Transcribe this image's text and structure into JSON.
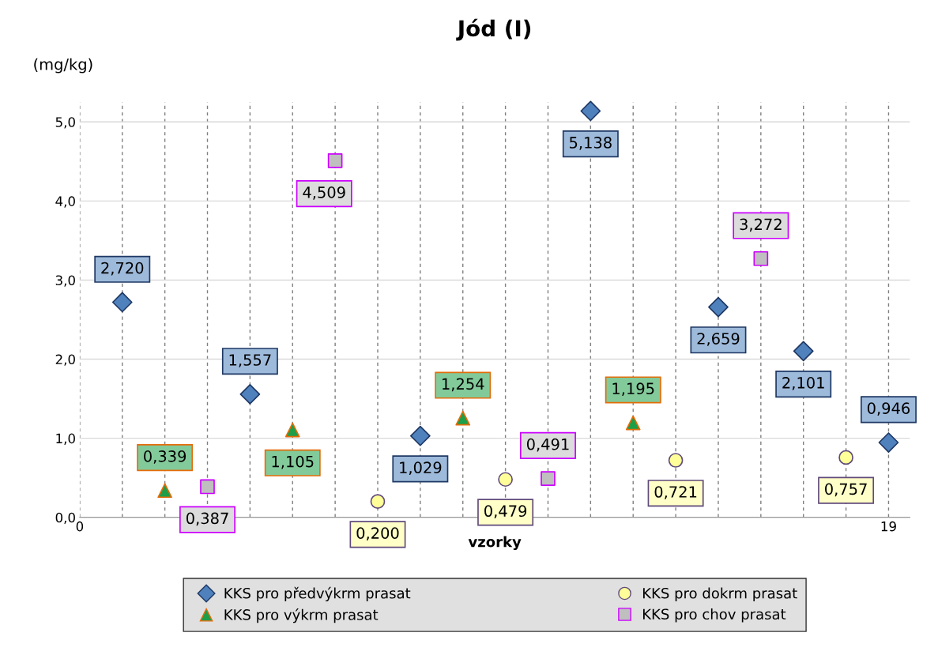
{
  "chart_data": {
    "type": "scatter",
    "title": "Jód (I)",
    "ylabel": "(mg/kg)",
    "xlabel": "vzorky",
    "xlim": [
      0,
      19.5
    ],
    "xticks": [
      0,
      {
        "value": 1,
        "label": null
      },
      {
        "value": 2,
        "label": null
      },
      {
        "value": 3,
        "label": null
      },
      {
        "value": 4,
        "label": null
      },
      {
        "value": 5,
        "label": null
      },
      {
        "value": 6,
        "label": null
      },
      {
        "value": 7,
        "label": null
      },
      {
        "value": 8,
        "label": null
      },
      {
        "value": 9,
        "label": null
      },
      {
        "value": 10,
        "label": null
      },
      {
        "value": 11,
        "label": null
      },
      {
        "value": 12,
        "label": null
      },
      {
        "value": 13,
        "label": null
      },
      {
        "value": 14,
        "label": null
      },
      {
        "value": 15,
        "label": null
      },
      {
        "value": 16,
        "label": null
      },
      {
        "value": 17,
        "label": null
      },
      {
        "value": 18,
        "label": null
      },
      19
    ],
    "ylim": [
      0,
      5.25
    ],
    "yticks": [
      {
        "value": 0,
        "label": "0,0"
      },
      {
        "value": 1,
        "label": "1,0"
      },
      {
        "value": 2,
        "label": "2,0"
      },
      {
        "value": 3,
        "label": "3,0"
      },
      {
        "value": 4,
        "label": "4,0"
      },
      {
        "value": 5,
        "label": "5,0"
      }
    ],
    "grid": true,
    "legend": "bottom",
    "series": [
      {
        "name": "KKS pro předvýkrm prasat",
        "color": "#4f81bd",
        "marker": "diamond",
        "x": [
          1,
          4,
          8,
          12,
          15,
          17,
          19
        ],
        "values": [
          2.72,
          1.557,
          1.029,
          5.138,
          2.659,
          2.101,
          0.946
        ],
        "value_labels": [
          "2,720",
          "1,557",
          "1,029",
          "5,138",
          "2,659",
          "2,101",
          "0,946"
        ]
      },
      {
        "name": "KKS pro výkrm prasat",
        "color": "#1e9e48",
        "marker": "triangle",
        "x": [
          2,
          5,
          9,
          13
        ],
        "values": [
          0.339,
          1.105,
          1.254,
          1.195
        ],
        "value_labels": [
          "0,339",
          "1,105",
          "1,254",
          "1,195"
        ]
      },
      {
        "name": "KKS pro dokrm prasat",
        "color": "#ffff99",
        "marker": "circle",
        "x": [
          7,
          10,
          14,
          18
        ],
        "values": [
          0.2,
          0.479,
          0.721,
          0.757
        ],
        "value_labels": [
          "0,200",
          "0,479",
          "0,721",
          "0,757"
        ]
      },
      {
        "name": "KKS pro chov prasat",
        "color": "#bfbfbf",
        "marker": "square",
        "x": [
          3,
          6,
          11,
          16
        ],
        "values": [
          0.387,
          4.509,
          0.491,
          3.272
        ],
        "value_labels": [
          "0,387",
          "4,509",
          "0,491",
          "3,272"
        ]
      }
    ]
  }
}
